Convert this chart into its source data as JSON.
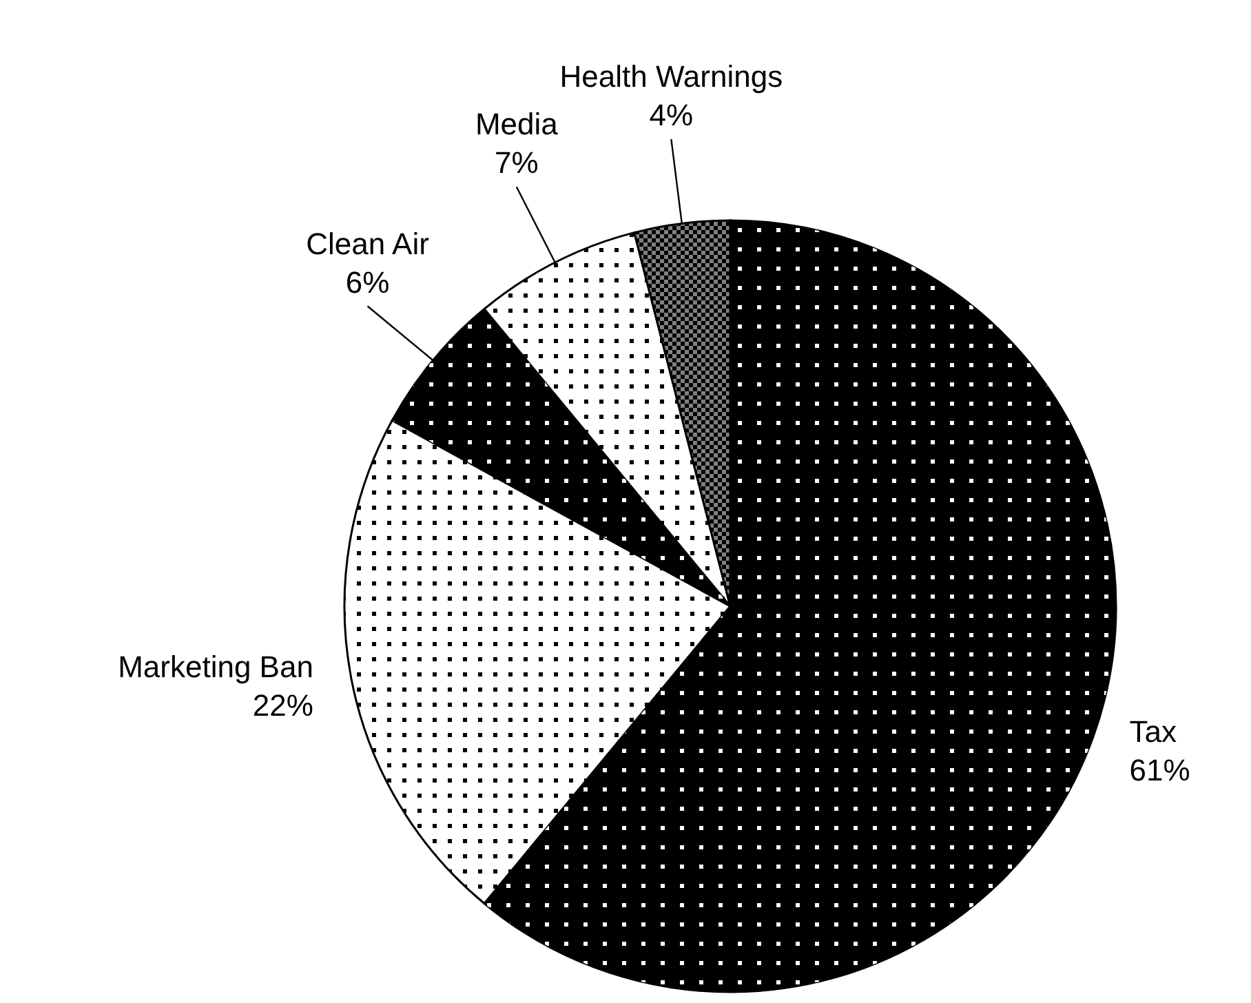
{
  "chart_data": {
    "type": "pie",
    "categories": [
      "Tax",
      "Marketing Ban",
      "Clean Air",
      "Media",
      "Health Warnings"
    ],
    "values": [
      61,
      22,
      6,
      7,
      4
    ],
    "value_labels": [
      "61%",
      "22%",
      "6%",
      "7%",
      "4%"
    ],
    "colors": [
      "#000000",
      "#ffffff",
      "#000000",
      "#ffffff",
      "#808080"
    ]
  }
}
